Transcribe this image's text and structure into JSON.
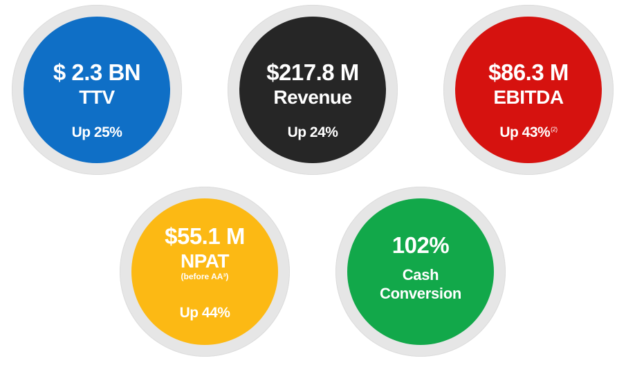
{
  "metrics": [
    {
      "value": "$ 2.3 BN",
      "name": "TTV",
      "change": "Up 25%",
      "color": "#0f6fc6"
    },
    {
      "value": "$217.8 M",
      "name": "Revenue",
      "change": "Up 24%",
      "color": "#262626"
    },
    {
      "value": "$86.3 M",
      "name": "EBITDA",
      "change": "Up 43%",
      "footnote": "(2)",
      "color": "#d6120f"
    },
    {
      "value": "$55.1 M",
      "name": "NPAT",
      "note": "(before AA³)",
      "change": "Up 44%",
      "color": "#fcb914"
    },
    {
      "value": "102%",
      "name_line1": "Cash",
      "name_line2": "Conversion",
      "color": "#12a84a"
    }
  ],
  "ring_color": "#e6e6e6"
}
